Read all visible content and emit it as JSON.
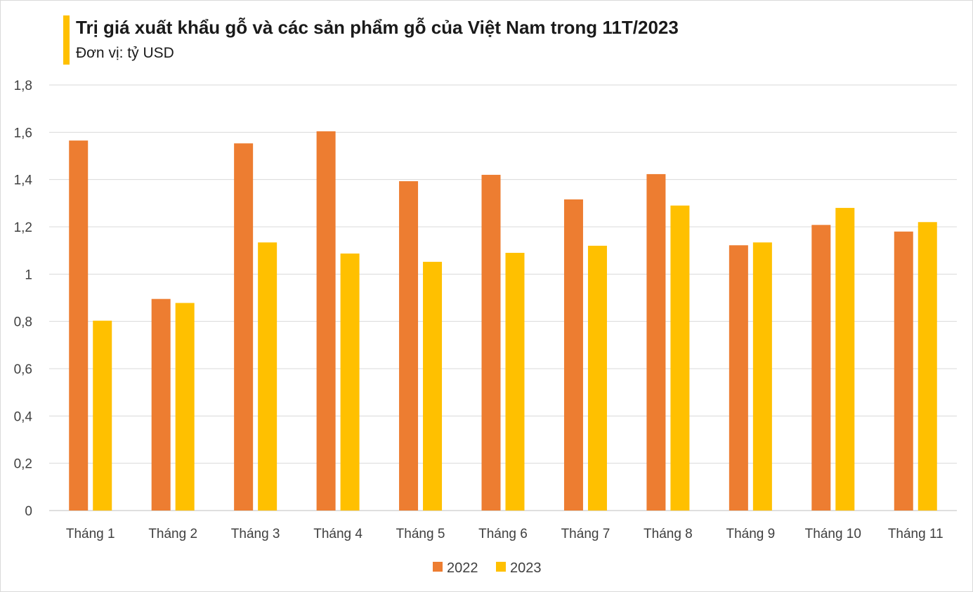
{
  "chart_data": {
    "type": "bar",
    "title": "Trị giá xuất khẩu gỗ và các sản phẩm gỗ của Việt Nam trong 11T/2023",
    "subtitle": "Đơn vị: tỷ USD",
    "categories": [
      "Tháng 1",
      "Tháng 2",
      "Tháng 3",
      "Tháng 4",
      "Tháng 5",
      "Tháng 6",
      "Tháng 7",
      "Tháng 8",
      "Tháng 9",
      "Tháng 10",
      "Tháng 11"
    ],
    "series": [
      {
        "name": "2022",
        "color": "#ED7D31",
        "values": [
          1.565,
          0.895,
          1.553,
          1.604,
          1.393,
          1.42,
          1.316,
          1.423,
          1.122,
          1.208,
          1.18
        ]
      },
      {
        "name": "2023",
        "color": "#FFC000",
        "values": [
          0.803,
          0.878,
          1.134,
          1.087,
          1.052,
          1.09,
          1.12,
          1.29,
          1.134,
          1.28,
          1.22
        ]
      }
    ],
    "ylim": [
      0,
      1.8
    ],
    "yticks": [
      "0",
      "0,2",
      "0,4",
      "0,6",
      "0,8",
      "1",
      "1,2",
      "1,4",
      "1,6",
      "1,8"
    ],
    "xlabel": "",
    "ylabel": "",
    "grid": true,
    "legend_position": "bottom",
    "accent_color": "#FFC000"
  }
}
